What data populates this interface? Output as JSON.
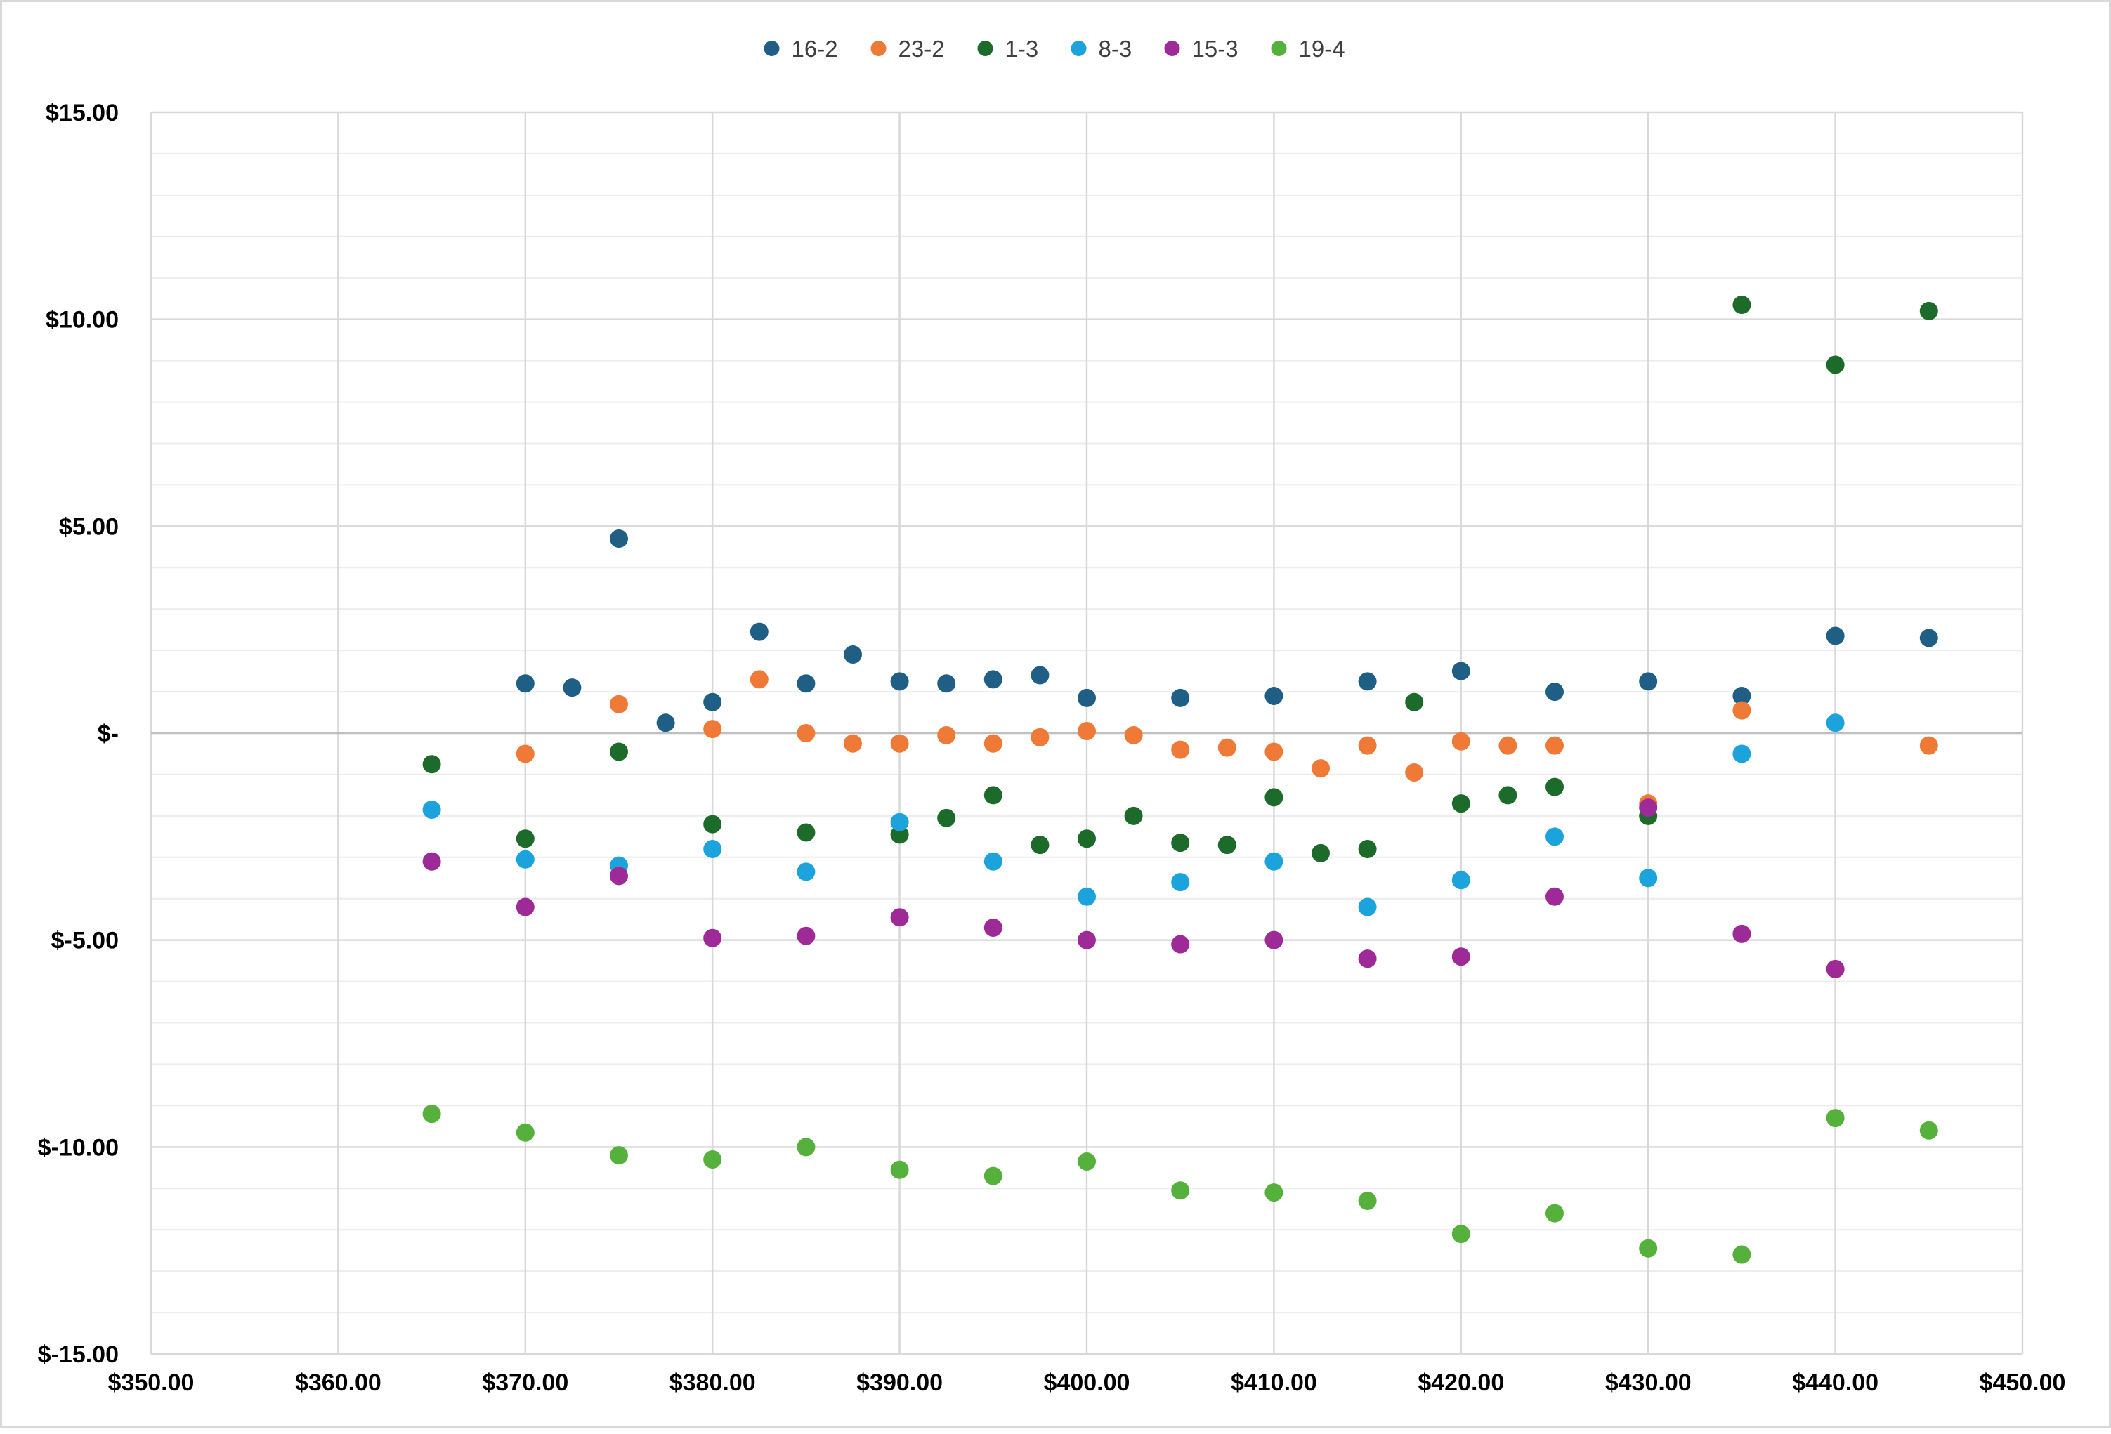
{
  "chart_data": {
    "type": "scatter",
    "title": "",
    "xlabel": "",
    "ylabel": "",
    "xlim": [
      350,
      450
    ],
    "ylim": [
      -15,
      15
    ],
    "x_ticks": [
      350,
      360,
      370,
      380,
      390,
      400,
      410,
      420,
      430,
      440,
      450
    ],
    "x_tick_labels": [
      "$350.00",
      "$360.00",
      "$370.00",
      "$380.00",
      "$390.00",
      "$400.00",
      "$410.00",
      "$420.00",
      "$430.00",
      "$440.00",
      "$450.00"
    ],
    "y_ticks": [
      15,
      10,
      5,
      0,
      -5,
      -10,
      -15
    ],
    "y_tick_labels": [
      "$15.00",
      "$10.00",
      "$5.00",
      "$-",
      "$-5.00",
      "$-10.00",
      "$-15.00"
    ],
    "y_minor_step": 1,
    "grid": true,
    "legend_position": "top",
    "series": [
      {
        "name": "16-2",
        "color": "#1f5f85",
        "points": [
          [
            370,
            1.2
          ],
          [
            372.5,
            1.1
          ],
          [
            375,
            4.7
          ],
          [
            377.5,
            0.25
          ],
          [
            380,
            0.75
          ],
          [
            382.5,
            2.45
          ],
          [
            385,
            1.2
          ],
          [
            387.5,
            1.9
          ],
          [
            390,
            1.25
          ],
          [
            392.5,
            1.2
          ],
          [
            395,
            1.3
          ],
          [
            397.5,
            1.4
          ],
          [
            400,
            0.85
          ],
          [
            405,
            0.85
          ],
          [
            410,
            0.9
          ],
          [
            415,
            1.25
          ],
          [
            420,
            1.5
          ],
          [
            425,
            1.0
          ],
          [
            430,
            1.25
          ],
          [
            435,
            0.9
          ],
          [
            440,
            2.35
          ],
          [
            445,
            2.3
          ]
        ]
      },
      {
        "name": "23-2",
        "color": "#ef7936",
        "points": [
          [
            370,
            -0.5
          ],
          [
            375,
            0.7
          ],
          [
            380,
            0.1
          ],
          [
            382.5,
            1.3
          ],
          [
            385,
            0.0
          ],
          [
            387.5,
            -0.25
          ],
          [
            390,
            -0.25
          ],
          [
            392.5,
            -0.05
          ],
          [
            395,
            -0.25
          ],
          [
            397.5,
            -0.1
          ],
          [
            400,
            0.05
          ],
          [
            402.5,
            -0.05
          ],
          [
            405,
            -0.4
          ],
          [
            407.5,
            -0.35
          ],
          [
            410,
            -0.45
          ],
          [
            412.5,
            -0.85
          ],
          [
            415,
            -0.3
          ],
          [
            417.5,
            -0.95
          ],
          [
            420,
            -0.2
          ],
          [
            422.5,
            -0.3
          ],
          [
            425,
            -0.3
          ],
          [
            430,
            -1.7
          ],
          [
            435,
            0.55
          ],
          [
            445,
            -0.3
          ]
        ]
      },
      {
        "name": "1-3",
        "color": "#1d6b2b",
        "points": [
          [
            365,
            -0.75
          ],
          [
            370,
            -2.55
          ],
          [
            375,
            -0.45
          ],
          [
            380,
            -2.2
          ],
          [
            385,
            -2.4
          ],
          [
            390,
            -2.45
          ],
          [
            392.5,
            -2.05
          ],
          [
            395,
            -1.5
          ],
          [
            397.5,
            -2.7
          ],
          [
            400,
            -2.55
          ],
          [
            402.5,
            -2.0
          ],
          [
            405,
            -2.65
          ],
          [
            407.5,
            -2.7
          ],
          [
            410,
            -1.55
          ],
          [
            412.5,
            -2.9
          ],
          [
            415,
            -2.8
          ],
          [
            417.5,
            0.75
          ],
          [
            420,
            -1.7
          ],
          [
            422.5,
            -1.5
          ],
          [
            425,
            -1.3
          ],
          [
            430,
            -2.0
          ],
          [
            435,
            10.35
          ],
          [
            440,
            8.9
          ],
          [
            445,
            10.2
          ]
        ]
      },
      {
        "name": "8-3",
        "color": "#1ca3dc",
        "points": [
          [
            365,
            -1.85
          ],
          [
            370,
            -3.05
          ],
          [
            375,
            -3.2
          ],
          [
            380,
            -2.8
          ],
          [
            385,
            -3.35
          ],
          [
            390,
            -2.15
          ],
          [
            395,
            -3.1
          ],
          [
            400,
            -3.95
          ],
          [
            405,
            -3.6
          ],
          [
            410,
            -3.1
          ],
          [
            415,
            -4.2
          ],
          [
            420,
            -3.55
          ],
          [
            425,
            -2.5
          ],
          [
            430,
            -3.5
          ],
          [
            435,
            -0.5
          ],
          [
            440,
            0.25
          ]
        ]
      },
      {
        "name": "15-3",
        "color": "#9e2a98",
        "points": [
          [
            365,
            -3.1
          ],
          [
            370,
            -4.2
          ],
          [
            375,
            -3.45
          ],
          [
            380,
            -4.95
          ],
          [
            385,
            -4.9
          ],
          [
            390,
            -4.45
          ],
          [
            395,
            -4.7
          ],
          [
            400,
            -5.0
          ],
          [
            405,
            -5.1
          ],
          [
            410,
            -5.0
          ],
          [
            415,
            -5.45
          ],
          [
            420,
            -5.4
          ],
          [
            425,
            -3.95
          ],
          [
            430,
            -1.8
          ],
          [
            435,
            -4.85
          ],
          [
            440,
            -5.7
          ]
        ]
      },
      {
        "name": "19-4",
        "color": "#55b13c",
        "points": [
          [
            365,
            -9.2
          ],
          [
            370,
            -9.65
          ],
          [
            375,
            -10.2
          ],
          [
            380,
            -10.3
          ],
          [
            385,
            -10.0
          ],
          [
            390,
            -10.55
          ],
          [
            395,
            -10.7
          ],
          [
            400,
            -10.35
          ],
          [
            405,
            -11.05
          ],
          [
            410,
            -11.1
          ],
          [
            415,
            -11.3
          ],
          [
            420,
            -12.1
          ],
          [
            425,
            -11.6
          ],
          [
            430,
            -12.45
          ],
          [
            435,
            -12.6
          ],
          [
            440,
            -9.3
          ],
          [
            445,
            -9.6
          ]
        ]
      }
    ]
  }
}
